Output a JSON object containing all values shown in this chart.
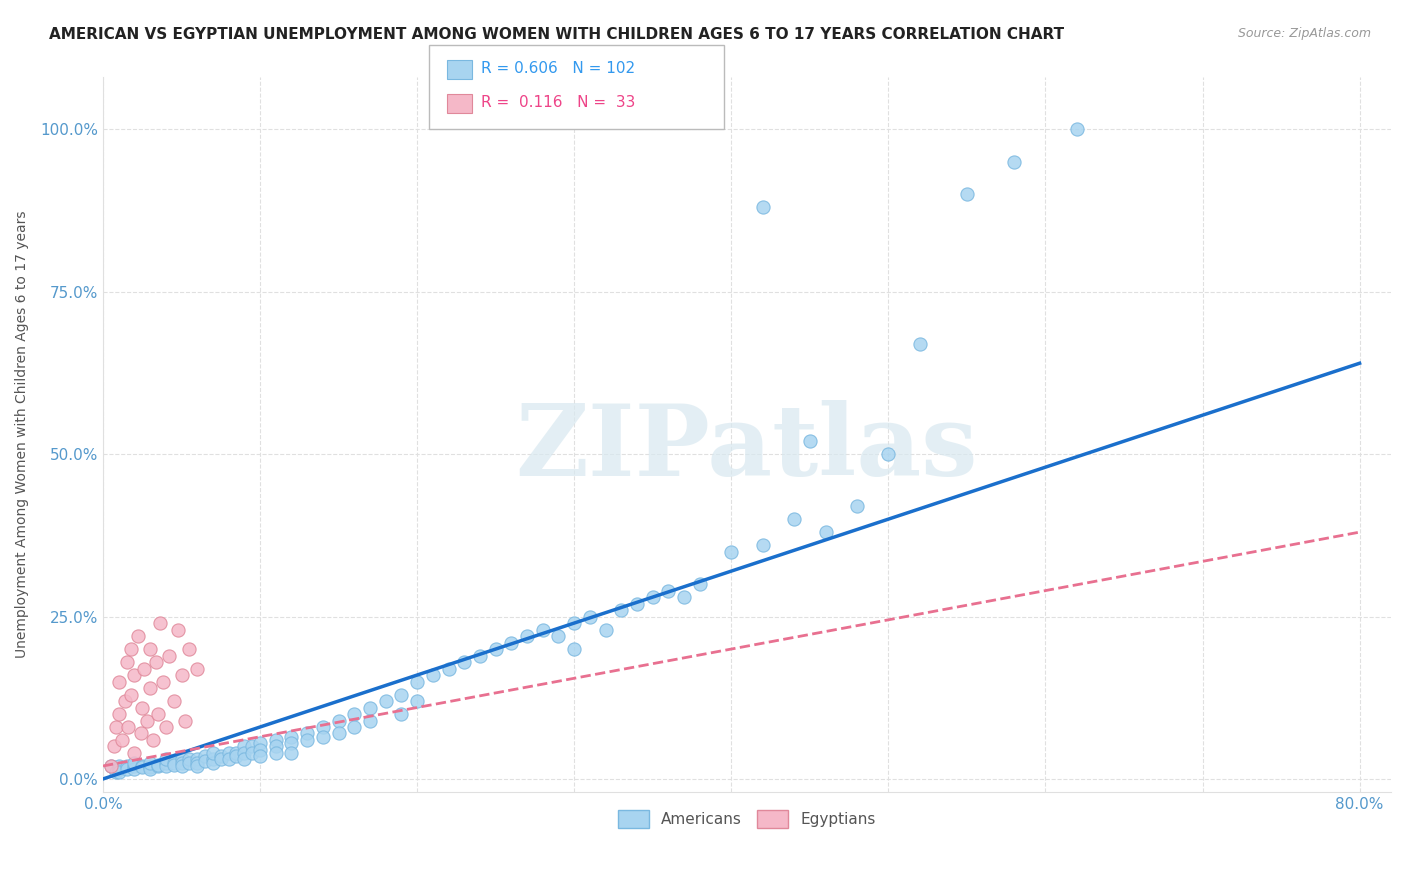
{
  "title": "AMERICAN VS EGYPTIAN UNEMPLOYMENT AMONG WOMEN WITH CHILDREN AGES 6 TO 17 YEARS CORRELATION CHART",
  "source": "Source: ZipAtlas.com",
  "ylabel": "Unemployment Among Women with Children Ages 6 to 17 years",
  "xlim": [
    0.0,
    0.82
  ],
  "ylim": [
    -0.02,
    1.08
  ],
  "xticks": [
    0.0,
    0.1,
    0.2,
    0.3,
    0.4,
    0.5,
    0.6,
    0.7,
    0.8
  ],
  "xtick_labels": [
    "0.0%",
    "",
    "",
    "",
    "",
    "",
    "",
    "",
    "80.0%"
  ],
  "yticks": [
    0.0,
    0.25,
    0.5,
    0.75,
    1.0
  ],
  "ytick_labels": [
    "0.0%",
    "25.0%",
    "50.0%",
    "75.0%",
    "100.0%"
  ],
  "american_color": "#a8d4f0",
  "american_edge": "#7ab8e0",
  "egyptian_color": "#f5b8c8",
  "egyptian_edge": "#e0889a",
  "american_R": 0.606,
  "american_N": 102,
  "egyptian_R": 0.116,
  "egyptian_N": 33,
  "watermark": "ZIPatlas",
  "background_color": "#ffffff",
  "grid_color": "#e0e0e0",
  "trend_american_color": "#1a6fcc",
  "trend_egyptian_color": "#e87090",
  "americans_x": [
    0.005,
    0.008,
    0.01,
    0.01,
    0.01,
    0.015,
    0.015,
    0.02,
    0.02,
    0.02,
    0.025,
    0.025,
    0.03,
    0.03,
    0.03,
    0.03,
    0.035,
    0.035,
    0.04,
    0.04,
    0.04,
    0.045,
    0.045,
    0.05,
    0.05,
    0.05,
    0.055,
    0.055,
    0.06,
    0.06,
    0.06,
    0.065,
    0.065,
    0.07,
    0.07,
    0.07,
    0.075,
    0.075,
    0.08,
    0.08,
    0.085,
    0.085,
    0.09,
    0.09,
    0.09,
    0.095,
    0.095,
    0.1,
    0.1,
    0.1,
    0.11,
    0.11,
    0.11,
    0.12,
    0.12,
    0.12,
    0.13,
    0.13,
    0.14,
    0.14,
    0.15,
    0.15,
    0.16,
    0.16,
    0.17,
    0.17,
    0.18,
    0.19,
    0.19,
    0.2,
    0.2,
    0.21,
    0.22,
    0.23,
    0.24,
    0.25,
    0.26,
    0.27,
    0.28,
    0.29,
    0.3,
    0.3,
    0.31,
    0.32,
    0.33,
    0.34,
    0.35,
    0.36,
    0.37,
    0.38,
    0.4,
    0.42,
    0.42,
    0.44,
    0.45,
    0.46,
    0.48,
    0.5,
    0.52,
    0.55,
    0.58,
    0.62
  ],
  "americans_y": [
    0.02,
    0.01,
    0.02,
    0.015,
    0.01,
    0.02,
    0.015,
    0.02,
    0.015,
    0.025,
    0.02,
    0.018,
    0.02,
    0.018,
    0.015,
    0.025,
    0.02,
    0.022,
    0.025,
    0.02,
    0.03,
    0.025,
    0.022,
    0.03,
    0.025,
    0.02,
    0.03,
    0.025,
    0.03,
    0.025,
    0.02,
    0.035,
    0.028,
    0.03,
    0.025,
    0.04,
    0.035,
    0.03,
    0.04,
    0.03,
    0.04,
    0.035,
    0.05,
    0.04,
    0.03,
    0.05,
    0.04,
    0.055,
    0.045,
    0.035,
    0.06,
    0.05,
    0.04,
    0.065,
    0.055,
    0.04,
    0.07,
    0.06,
    0.08,
    0.065,
    0.09,
    0.07,
    0.1,
    0.08,
    0.11,
    0.09,
    0.12,
    0.13,
    0.1,
    0.15,
    0.12,
    0.16,
    0.17,
    0.18,
    0.19,
    0.2,
    0.21,
    0.22,
    0.23,
    0.22,
    0.24,
    0.2,
    0.25,
    0.23,
    0.26,
    0.27,
    0.28,
    0.29,
    0.28,
    0.3,
    0.35,
    0.36,
    0.88,
    0.4,
    0.52,
    0.38,
    0.42,
    0.5,
    0.67,
    0.9,
    0.95,
    1.0
  ],
  "egyptians_x": [
    0.005,
    0.007,
    0.008,
    0.01,
    0.01,
    0.012,
    0.014,
    0.015,
    0.016,
    0.018,
    0.018,
    0.02,
    0.02,
    0.022,
    0.024,
    0.025,
    0.026,
    0.028,
    0.03,
    0.03,
    0.032,
    0.034,
    0.035,
    0.036,
    0.038,
    0.04,
    0.042,
    0.045,
    0.048,
    0.05,
    0.052,
    0.055,
    0.06
  ],
  "egyptians_y": [
    0.02,
    0.05,
    0.08,
    0.1,
    0.15,
    0.06,
    0.12,
    0.18,
    0.08,
    0.13,
    0.2,
    0.04,
    0.16,
    0.22,
    0.07,
    0.11,
    0.17,
    0.09,
    0.14,
    0.2,
    0.06,
    0.18,
    0.1,
    0.24,
    0.15,
    0.08,
    0.19,
    0.12,
    0.23,
    0.16,
    0.09,
    0.2,
    0.17
  ],
  "american_trend_x0": 0.0,
  "american_trend_y0": 0.0,
  "american_trend_x1": 0.8,
  "american_trend_y1": 0.64,
  "egyptian_trend_x0": 0.0,
  "egyptian_trend_y0": 0.02,
  "egyptian_trend_x1": 0.8,
  "egyptian_trend_y1": 0.38
}
